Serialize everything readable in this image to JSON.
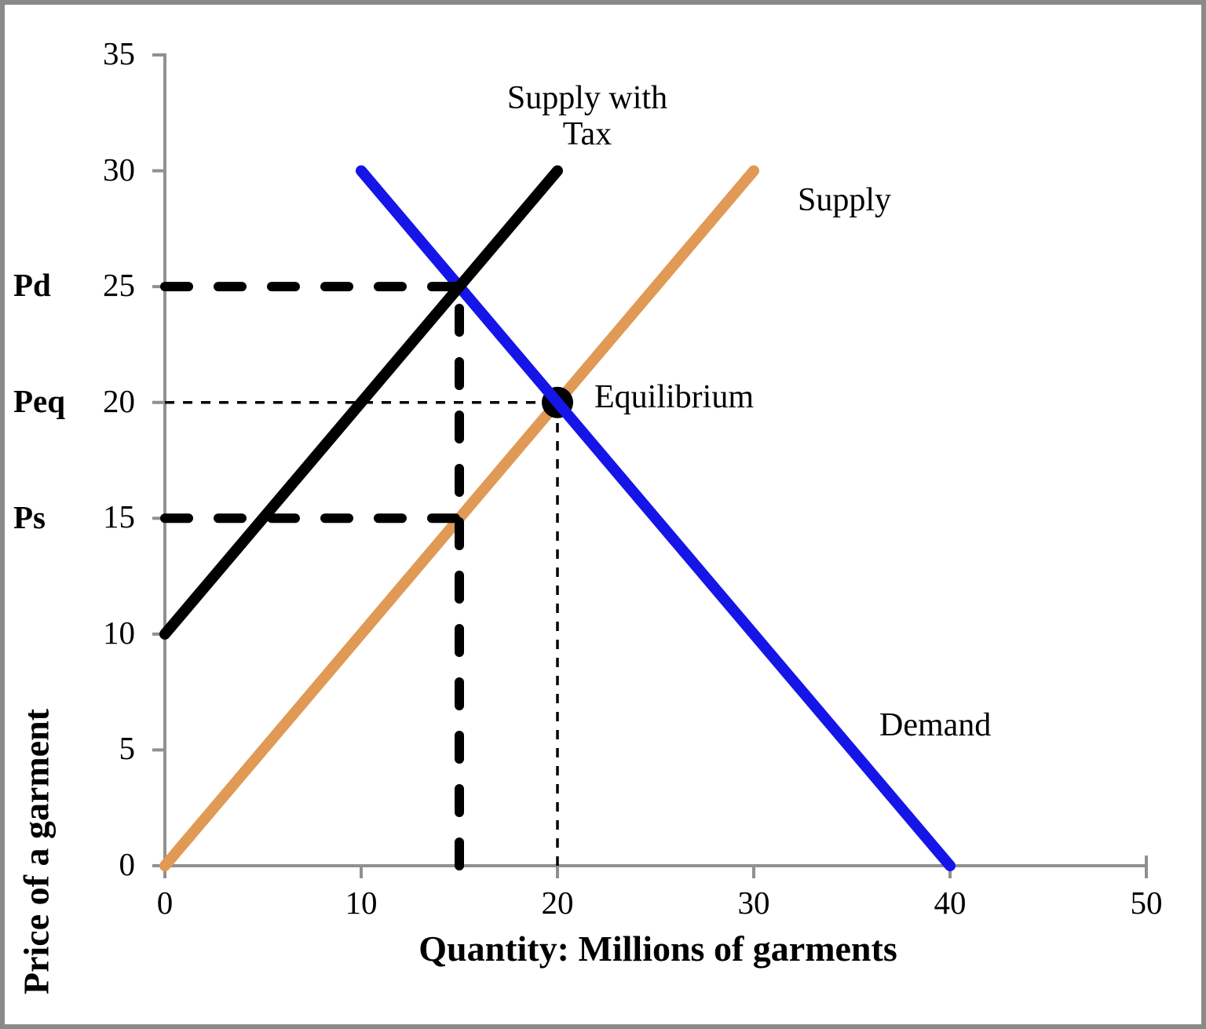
{
  "chart_data": {
    "type": "line",
    "title": "",
    "xlabel": "Quantity: Millions of garments",
    "ylabel": "Price of a garment",
    "xlim": [
      0,
      50
    ],
    "ylim": [
      0,
      35
    ],
    "grid": false,
    "legend": "none (lines labeled inline)",
    "x_ticks": [
      0,
      10,
      20,
      30,
      40,
      50
    ],
    "y_ticks": [
      0,
      5,
      10,
      15,
      20,
      25,
      30,
      35
    ],
    "axis_color": "#909090",
    "series": [
      {
        "name": "Supply",
        "color": "#e09a55",
        "width": 14,
        "layer": 1,
        "points": [
          [
            0,
            0
          ],
          [
            30,
            30
          ]
        ]
      },
      {
        "name": "Demand",
        "color": "#1515e8",
        "width": 14,
        "layer": 3,
        "points": [
          [
            10,
            30
          ],
          [
            40,
            0
          ]
        ]
      },
      {
        "name": "Supply with Tax",
        "color": "#000000",
        "width": 14,
        "layer": 4,
        "points": [
          [
            0,
            10
          ],
          [
            20,
            30
          ]
        ]
      }
    ],
    "points": [
      {
        "name": "equilibrium",
        "x": 20,
        "y": 20,
        "color": "#000000",
        "radius": 20,
        "layer": 2
      }
    ],
    "guides": [
      {
        "name": "pd-price-line",
        "style": "thick-dashed",
        "layer": 5,
        "from": [
          0,
          25
        ],
        "to": [
          15,
          25
        ]
      },
      {
        "name": "ps-price-line",
        "style": "thick-dashed",
        "layer": 5,
        "from": [
          0,
          15
        ],
        "to": [
          15,
          15
        ]
      },
      {
        "name": "tax-quantity-line",
        "style": "thick-dashed",
        "layer": 5,
        "from": [
          15,
          0
        ],
        "to": [
          15,
          25
        ]
      },
      {
        "name": "peq-price-line",
        "style": "thin-dotted",
        "layer": 0,
        "from": [
          0,
          20
        ],
        "to": [
          20,
          20
        ]
      },
      {
        "name": "eq-quantity-line",
        "style": "thin-dotted",
        "layer": 0,
        "from": [
          20,
          0
        ],
        "to": [
          20,
          20
        ]
      }
    ],
    "annotations": {
      "supply_with_tax_line1": "Supply with",
      "supply_with_tax_line2": "Tax",
      "supply": "Supply",
      "demand": "Demand",
      "equilibrium": "Equilibrium",
      "pd": "Pd",
      "peq": "Peq",
      "ps": "Ps"
    }
  }
}
